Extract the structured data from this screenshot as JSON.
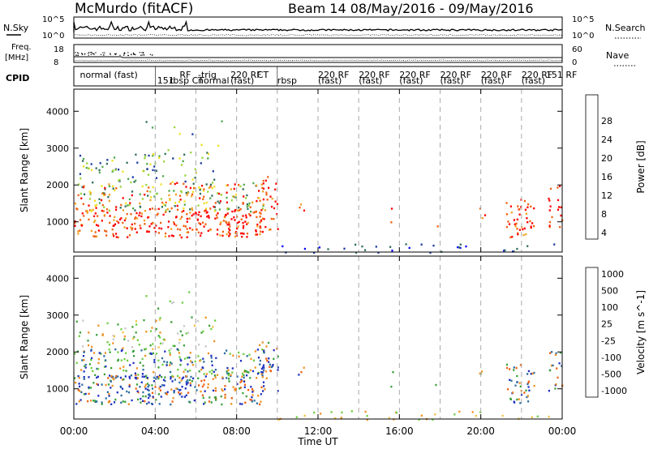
{
  "header": {
    "station": "McMurdo  (fitACF)",
    "beam": "Beam 14  08/May/2016 - 09/May/2016"
  },
  "top_panels": {
    "nsky_label": "N.Sky",
    "nsky_ticks": [
      "10^5",
      "10^0"
    ],
    "nsearch_label": "N.Search",
    "nsearch_ticks": [
      "10^5",
      "10^0"
    ],
    "freq_label_1": "Freq.",
    "freq_label_2": "[MHz]",
    "freq_ticks": [
      "18",
      "8"
    ],
    "nave_label": "Nave",
    "nave_ticks": [
      "60",
      "0"
    ],
    "cpid_label": "CPID"
  },
  "cpid_labels": [
    {
      "text": "normal (fast)",
      "t": 0.3
    },
    {
      "text": "151",
      "t": 4.1
    },
    {
      "text": "RF",
      "t": 5.2
    },
    {
      "text": "rbsp CT",
      "t": 4.7
    },
    {
      "text": "-trig",
      "t": 6.1
    },
    {
      "text": "normal",
      "t": 6.1
    },
    {
      "text": "220 RF",
      "t": 7.7
    },
    {
      "text": "(fast)",
      "t": 7.7
    },
    {
      "text": "CT",
      "t": 9.0
    },
    {
      "text": "rbsp",
      "t": 10.0
    },
    {
      "text": "220 RF",
      "t": 12.0
    },
    {
      "text": "(fast)",
      "t": 12.0
    },
    {
      "text": "220 RF",
      "t": 14.0
    },
    {
      "text": "(fast)",
      "t": 14.0
    },
    {
      "text": "220 RF",
      "t": 16.0
    },
    {
      "text": "(fast)",
      "t": 16.0
    },
    {
      "text": "220 RF",
      "t": 18.0
    },
    {
      "text": "(fast)",
      "t": 18.0
    },
    {
      "text": "220 RF",
      "t": 20.0
    },
    {
      "text": "(fast)",
      "t": 20.0
    },
    {
      "text": "220 RF",
      "t": 22.0
    },
    {
      "text": "(fast)",
      "t": 22.0
    },
    {
      "text": "151 RF",
      "t": 23.2
    }
  ],
  "chart_data": [
    {
      "type": "heatmap",
      "title": "Power",
      "xlabel": "Time UT",
      "ylabel": "Slant Range [km]",
      "xlim": [
        0,
        24
      ],
      "ylim": [
        180,
        4600
      ],
      "x_ticks": [
        "00:00",
        "04:00",
        "08:00",
        "12:00",
        "16:00",
        "20:00",
        "00:00"
      ],
      "y_ticks": [
        1000,
        2000,
        3000,
        4000
      ],
      "colorbar_label": "Power [dB]",
      "colorbar_ticks": [
        "28",
        "24",
        "20",
        "16",
        "12",
        "8",
        "4"
      ],
      "colors": [
        "#0000ff",
        "#1a3aa0",
        "#2f6e5a",
        "#4fa84f",
        "#9ad43a",
        "#f0e020",
        "#f2a020",
        "#f06010",
        "#ff0000"
      ],
      "dashed_grid_hours": [
        4,
        6,
        8,
        10,
        12,
        14,
        16,
        18,
        20,
        22
      ]
    },
    {
      "type": "heatmap",
      "title": "Velocity",
      "xlabel": "Time UT",
      "ylabel": "Slant Range [km]",
      "xlim": [
        0,
        24
      ],
      "ylim": [
        180,
        4600
      ],
      "x_ticks": [
        "00:00",
        "04:00",
        "08:00",
        "12:00",
        "16:00",
        "20:00",
        "00:00"
      ],
      "y_ticks": [
        1000,
        2000,
        3000,
        4000
      ],
      "colorbar_label": "Velocity [m s^-1]",
      "colorbar_ticks": [
        "1000",
        "500",
        "100",
        "25",
        "-25",
        "-100",
        "-500",
        "-1000"
      ],
      "colors": [
        "#2030c0",
        "#2e6ea0",
        "#3aa03a",
        "#6cd040",
        "#c8c8c8",
        "#f0c040",
        "#f09020",
        "#f06010",
        "#ff1010"
      ],
      "dashed_grid_hours": [
        4,
        6,
        8,
        10,
        12,
        14,
        16,
        18,
        20,
        22
      ]
    }
  ]
}
